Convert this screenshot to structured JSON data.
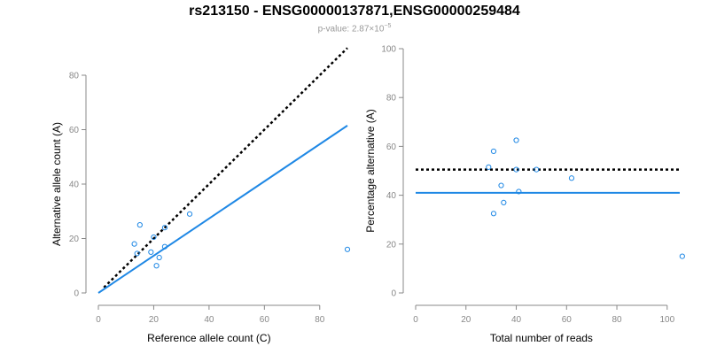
{
  "header": {
    "title": "rs213150 - ENSG00000137871,ENSG00000259484",
    "pvalue_prefix": "p-value: 2.87×10",
    "pvalue_exponent": "−5"
  },
  "colors": {
    "fit": "#1f88e5",
    "points": "#1f88e5",
    "reference": "#000000",
    "axis": "#888888"
  },
  "chart_data": [
    {
      "type": "scatter",
      "xlabel": "Reference allele count (C)",
      "ylabel": "Alternative allele count (A)",
      "xlim": [
        0,
        90
      ],
      "ylim": [
        0,
        80
      ],
      "xticks": [
        0,
        20,
        40,
        60,
        80
      ],
      "yticks": [
        0,
        20,
        40,
        60,
        80
      ],
      "grid": false,
      "points": [
        {
          "x": 13,
          "y": 18
        },
        {
          "x": 14,
          "y": 14.5
        },
        {
          "x": 15,
          "y": 25
        },
        {
          "x": 19,
          "y": 15
        },
        {
          "x": 20,
          "y": 20.5
        },
        {
          "x": 21,
          "y": 10
        },
        {
          "x": 22,
          "y": 13
        },
        {
          "x": 24,
          "y": 17
        },
        {
          "x": 24,
          "y": 24
        },
        {
          "x": 33,
          "y": 29
        },
        {
          "x": 90,
          "y": 16
        }
      ],
      "reference_line": {
        "style": "dotted",
        "x": [
          2,
          90
        ],
        "y": [
          2,
          90
        ]
      },
      "fit_line": {
        "style": "solid",
        "x": [
          0,
          90
        ],
        "y": [
          0,
          61.5
        ]
      }
    },
    {
      "type": "scatter",
      "xlabel": "Total number of reads",
      "ylabel": "Percentage alternative (A)",
      "xlim": [
        0,
        105
      ],
      "ylim": [
        0,
        100
      ],
      "xticks": [
        0,
        20,
        40,
        60,
        80,
        100
      ],
      "yticks": [
        0,
        20,
        40,
        60,
        80,
        100
      ],
      "grid": false,
      "points": [
        {
          "x": 29,
          "y": 51.5
        },
        {
          "x": 31,
          "y": 58
        },
        {
          "x": 31,
          "y": 32.5
        },
        {
          "x": 34,
          "y": 44
        },
        {
          "x": 35,
          "y": 37
        },
        {
          "x": 40,
          "y": 62.5
        },
        {
          "x": 40,
          "y": 50.5
        },
        {
          "x": 41,
          "y": 41.5
        },
        {
          "x": 48,
          "y": 50.5
        },
        {
          "x": 62,
          "y": 47
        },
        {
          "x": 106,
          "y": 15
        }
      ],
      "reference_line": {
        "style": "dotted",
        "x": [
          0,
          105
        ],
        "y": [
          50.5,
          50.5
        ]
      },
      "fit_line": {
        "style": "solid",
        "x": [
          0,
          105
        ],
        "y": [
          41,
          41
        ]
      }
    }
  ]
}
